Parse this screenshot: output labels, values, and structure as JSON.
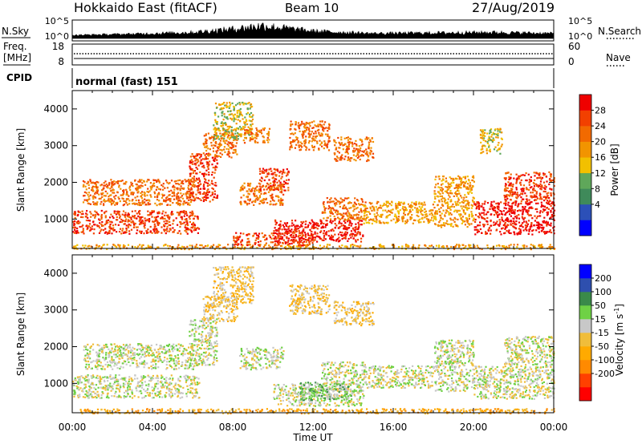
{
  "header": {
    "title": "Hokkaido East (fitACF)",
    "beam": "Beam 10",
    "date": "27/Aug/2019"
  },
  "status_panels": {
    "nsky": {
      "label": "N.Sky",
      "left_ticks": [
        "10^5",
        "10^0"
      ],
      "right_ticks": [
        "10^5",
        "10^0"
      ],
      "right_label": "N.Search"
    },
    "freq": {
      "label_line1": "Freq.",
      "label_line2": "[MHz]",
      "left_ticks": [
        "18",
        "8"
      ],
      "right_ticks": [
        "60",
        "0"
      ],
      "right_label": "Nave"
    },
    "cpid": {
      "label": "CPID",
      "text": "normal (fast) 151"
    }
  },
  "chart_data": [
    {
      "type": "heatmap",
      "title": "",
      "variable": "Power",
      "xlabel": "",
      "ylabel": "Slant Range [km]",
      "x_range_hours": [
        0,
        24
      ],
      "ylim_km": [
        200,
        4500
      ],
      "x_tick_labels": [
        "00:00",
        "04:00",
        "08:00",
        "12:00",
        "16:00",
        "20:00",
        "00:00"
      ],
      "y_ticks": [
        1000,
        2000,
        3000,
        4000
      ],
      "colorbar": {
        "label": "Power [dB]",
        "tick_labels": [
          "28",
          "24",
          "20",
          "16",
          "12",
          "8",
          "4"
        ],
        "colors": [
          "#0000ff",
          "#2c50b8",
          "#3f8a5a",
          "#5fa75a",
          "#f2c000",
          "#f29400",
          "#f26a00",
          "#f24000",
          "#ef0000"
        ]
      },
      "regions": [
        {
          "t": [
            0.0,
            24.0
          ],
          "r": [
            200,
            330
          ],
          "level": 5
        },
        {
          "t": [
            0.0,
            6.3
          ],
          "r": [
            620,
            1250
          ],
          "level": 7
        },
        {
          "t": [
            0.5,
            6.0
          ],
          "r": [
            1400,
            2100
          ],
          "level": 6
        },
        {
          "t": [
            5.8,
            7.2
          ],
          "r": [
            1500,
            2800
          ],
          "level": 7
        },
        {
          "t": [
            6.5,
            8.2
          ],
          "r": [
            2700,
            3400
          ],
          "level": 6
        },
        {
          "t": [
            7.0,
            9.0
          ],
          "r": [
            3200,
            4200
          ],
          "level": 4
        },
        {
          "t": [
            8.5,
            9.8
          ],
          "r": [
            3100,
            3500
          ],
          "level": 6
        },
        {
          "t": [
            8.3,
            10.5
          ],
          "r": [
            1400,
            2000
          ],
          "level": 6
        },
        {
          "t": [
            9.3,
            10.8
          ],
          "r": [
            1800,
            2400
          ],
          "level": 7
        },
        {
          "t": [
            10.0,
            14.5
          ],
          "r": [
            400,
            1000
          ],
          "level": 8
        },
        {
          "t": [
            8.0,
            12.0
          ],
          "r": [
            300,
            650
          ],
          "level": 7
        },
        {
          "t": [
            10.8,
            12.8
          ],
          "r": [
            2900,
            3700
          ],
          "level": 6
        },
        {
          "t": [
            12.4,
            14.6
          ],
          "r": [
            1000,
            1600
          ],
          "level": 6
        },
        {
          "t": [
            13.0,
            15.0
          ],
          "r": [
            2600,
            3250
          ],
          "level": 6
        },
        {
          "t": [
            14.5,
            18.0
          ],
          "r": [
            900,
            1500
          ],
          "level": 5
        },
        {
          "t": [
            18.0,
            20.0
          ],
          "r": [
            800,
            2200
          ],
          "level": 5
        },
        {
          "t": [
            20.0,
            24.0
          ],
          "r": [
            600,
            1500
          ],
          "level": 8
        },
        {
          "t": [
            21.5,
            24.0
          ],
          "r": [
            1500,
            2300
          ],
          "level": 7
        },
        {
          "t": [
            20.3,
            21.4
          ],
          "r": [
            2800,
            3500
          ],
          "level": 4
        }
      ]
    },
    {
      "type": "heatmap",
      "title": "",
      "variable": "Velocity",
      "xlabel": "Time UT",
      "ylabel": "Slant Range [km]",
      "x_range_hours": [
        0,
        24
      ],
      "ylim_km": [
        200,
        4500
      ],
      "x_tick_labels": [
        "00:00",
        "04:00",
        "08:00",
        "12:00",
        "16:00",
        "20:00",
        "00:00"
      ],
      "y_ticks": [
        1000,
        2000,
        3000,
        4000
      ],
      "colorbar": {
        "label": "Velocity [m s^-1]",
        "tick_labels": [
          "200",
          "100",
          "50",
          "15",
          "-15",
          "-50",
          "-100",
          "-200"
        ],
        "colors": [
          "#ff0000",
          "#ff4000",
          "#ff8a00",
          "#ffaa00",
          "#f0bd3a",
          "#c8c8c8",
          "#6fd145",
          "#3a8a4a",
          "#2e4fae",
          "#0000ff"
        ]
      },
      "regions": [
        {
          "t": [
            0.0,
            24.0
          ],
          "r": [
            200,
            330
          ],
          "level": 3
        },
        {
          "t": [
            0.0,
            6.3
          ],
          "r": [
            620,
            1250
          ],
          "level": 5
        },
        {
          "t": [
            0.5,
            6.0
          ],
          "r": [
            1400,
            2100
          ],
          "level": 5
        },
        {
          "t": [
            5.8,
            7.2
          ],
          "r": [
            1500,
            2800
          ],
          "level": 5
        },
        {
          "t": [
            6.5,
            8.2
          ],
          "r": [
            2700,
            3400
          ],
          "level": 4
        },
        {
          "t": [
            7.0,
            9.0
          ],
          "r": [
            3200,
            4200
          ],
          "level": 4
        },
        {
          "t": [
            8.3,
            10.5
          ],
          "r": [
            1400,
            2000
          ],
          "level": 5
        },
        {
          "t": [
            10.0,
            14.5
          ],
          "r": [
            400,
            1000
          ],
          "level": 5
        },
        {
          "t": [
            11.3,
            14.0
          ],
          "r": [
            550,
            1050
          ],
          "level": 6
        },
        {
          "t": [
            10.8,
            12.8
          ],
          "r": [
            2900,
            3700
          ],
          "level": 4
        },
        {
          "t": [
            12.4,
            14.6
          ],
          "r": [
            1000,
            1600
          ],
          "level": 5
        },
        {
          "t": [
            13.0,
            15.0
          ],
          "r": [
            2600,
            3250
          ],
          "level": 4
        },
        {
          "t": [
            14.5,
            18.0
          ],
          "r": [
            900,
            1500
          ],
          "level": 5
        },
        {
          "t": [
            18.0,
            20.0
          ],
          "r": [
            800,
            2200
          ],
          "level": 5
        },
        {
          "t": [
            20.0,
            24.0
          ],
          "r": [
            600,
            1500
          ],
          "level": 5
        },
        {
          "t": [
            21.5,
            24.0
          ],
          "r": [
            1500,
            2300
          ],
          "level": 5
        }
      ]
    }
  ],
  "status_series": {
    "nsky_profile": [
      {
        "t": 0.0,
        "v": 0.15
      },
      {
        "t": 3.0,
        "v": 0.25
      },
      {
        "t": 6.0,
        "v": 0.4
      },
      {
        "t": 8.0,
        "v": 0.7
      },
      {
        "t": 9.5,
        "v": 1.0
      },
      {
        "t": 10.5,
        "v": 0.8
      },
      {
        "t": 12.0,
        "v": 0.5
      },
      {
        "t": 15.0,
        "v": 0.3
      },
      {
        "t": 18.0,
        "v": 0.35
      },
      {
        "t": 21.0,
        "v": 0.4
      },
      {
        "t": 24.0,
        "v": 0.3
      }
    ]
  }
}
